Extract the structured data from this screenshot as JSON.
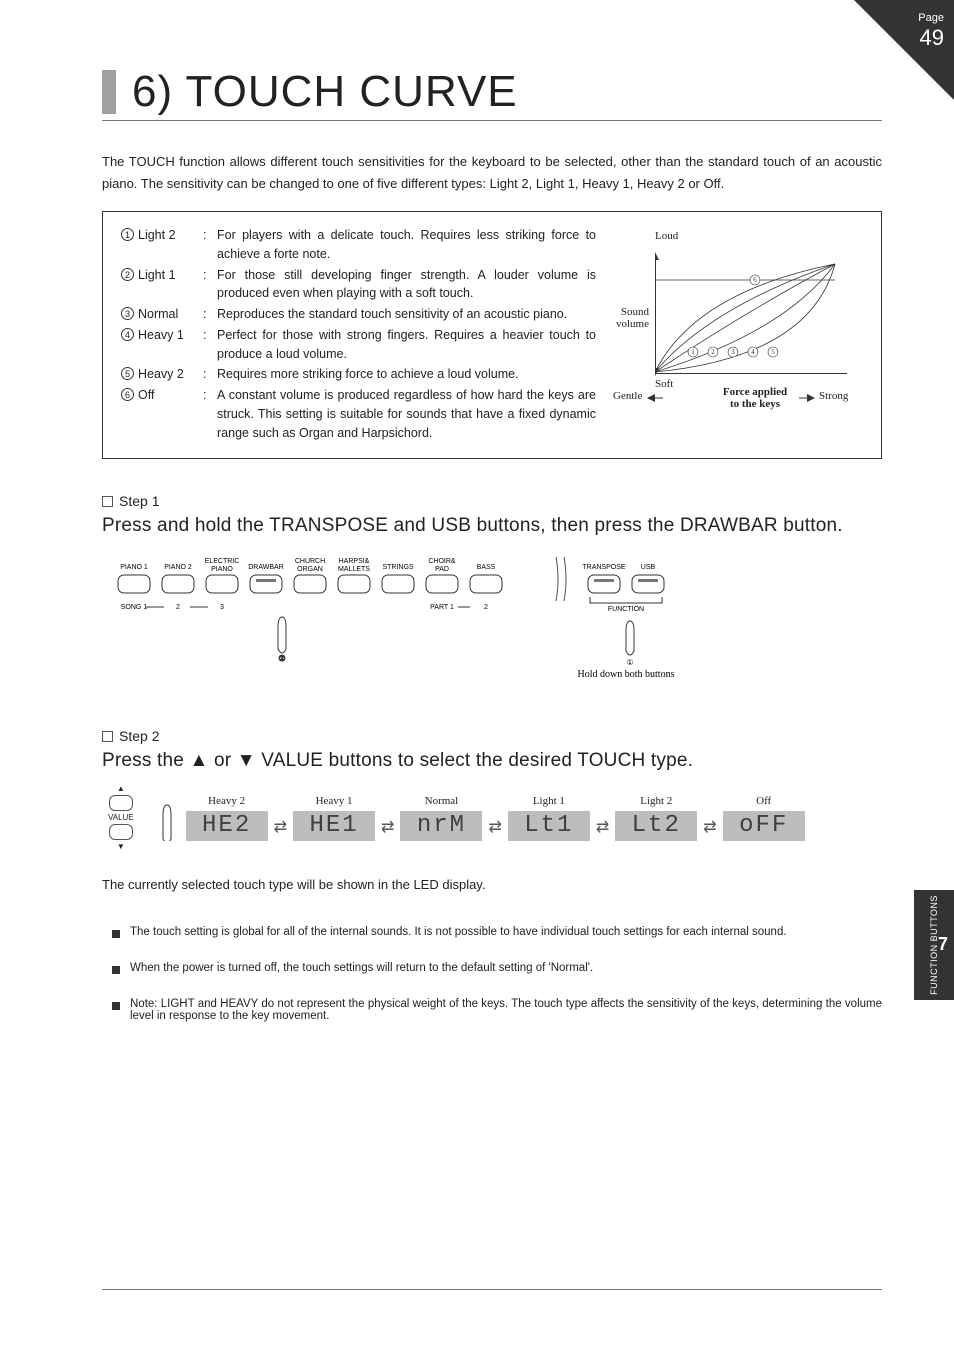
{
  "page": {
    "label": "Page",
    "number": "49",
    "section_num": "7",
    "section_label": "FUNCTION BUTTONS"
  },
  "title": "6) TOUCH CURVE",
  "intro": "The TOUCH function allows different touch sensitivities for the keyboard to be selected, other than the standard touch of an acoustic piano. The sensitivity can be changed to one of five different types: Light 2, Light 1, Heavy 1, Heavy 2 or Off.",
  "touch_types": [
    {
      "num": "1",
      "name": "Light 2",
      "desc": "For players with a delicate touch. Requires less striking force to achieve a forte note."
    },
    {
      "num": "2",
      "name": "Light 1",
      "desc": "For those still developing finger strength. A louder volume is produced even when playing with a soft touch."
    },
    {
      "num": "3",
      "name": "Normal",
      "desc": "Reproduces the standard touch sensitivity of an acoustic piano."
    },
    {
      "num": "4",
      "name": "Heavy 1",
      "desc": "Perfect for those with strong fingers. Requires a heavier touch to produce a loud volume."
    },
    {
      "num": "5",
      "name": "Heavy 2",
      "desc": "Requires more striking force to achieve a loud volume."
    },
    {
      "num": "6",
      "name": "Off",
      "desc": "A constant volume is produced regardless of how hard the keys are struck. This setting is suitable for sounds that have a fixed dynamic range such as Organ and Harpsichord."
    }
  ],
  "curve_diagram": {
    "y_top": "Loud",
    "y_bottom": "Soft",
    "y_axis": "Sound volume",
    "x_left": "Gentle",
    "x_right": "Strong",
    "x_axis": "Force applied to the keys",
    "curve_labels": [
      "1",
      "2",
      "3",
      "4",
      "5",
      "6"
    ],
    "plot": {
      "width": 192,
      "height": 120,
      "line_color": "#333333",
      "curves": [
        "M0,120 Q40,40 180,12",
        "M0,120 Q55,55 180,12",
        "M0,120 Q90,60 180,12",
        "M0,120 Q130,80 180,12",
        "M0,120 Q155,105 180,12",
        "M0,28 L180,28"
      ]
    }
  },
  "steps": {
    "step1": {
      "label": "Step 1",
      "text": "Press and hold the TRANSPOSE and USB buttons, then press the DRAWBAR button.",
      "panel_buttons": [
        "PIANO 1",
        "PIANO 2",
        "ELECTRIC PIANO",
        "DRAWBAR",
        "CHURCH ORGAN",
        "HARPSI& MALLETS",
        "STRINGS",
        "CHOIR& PAD",
        "BASS"
      ],
      "song_labels": [
        "SONG 1",
        "2",
        "3"
      ],
      "part_labels": [
        "PART 1",
        "2"
      ],
      "right_buttons": [
        "TRANSPOSE",
        "USB"
      ],
      "function_label": "FUNCTION",
      "hold_note": "Hold down both buttons"
    },
    "step2": {
      "label": "Step 2",
      "text": "Press the ▲ or ▼ VALUE buttons to select the desired TOUCH type.",
      "value_label": "VALUE",
      "led_items": [
        {
          "label": "Heavy 2",
          "code": "HE2"
        },
        {
          "label": "Heavy 1",
          "code": "HE1"
        },
        {
          "label": "Normal",
          "code": "nrM"
        },
        {
          "label": "Light 1",
          "code": "Lt1"
        },
        {
          "label": "Light 2",
          "code": "Lt2"
        },
        {
          "label": "Off",
          "code": "oFF"
        }
      ]
    }
  },
  "lcd_note": "The currently selected touch type will be shown in the LED display.",
  "notes": [
    "The touch setting is global for all of the internal sounds. It is not possible to have individual touch settings for each internal sound.",
    "When the power is turned off, the touch settings will return to the default setting of 'Normal'.",
    "Note: LIGHT and HEAVY do not represent the physical weight of the keys. The touch type affects the sensitivity of the keys, determining the volume level in response to the key movement."
  ]
}
